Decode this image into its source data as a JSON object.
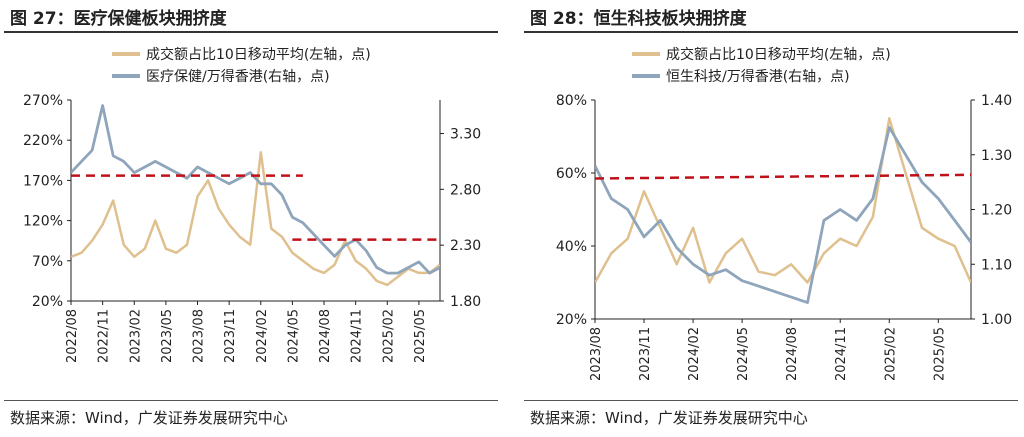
{
  "colors": {
    "turnover": "#DFC08E",
    "index": "#8FA5BB",
    "threshold": "#C0101A",
    "axis": "#222222"
  },
  "panels": [
    {
      "title": "图 27：医疗保健板块拥挤度",
      "source": "数据来源：Wind，广发证券发展研究中心",
      "legend": [
        "成交额占比10日移动平均(左轴，点)",
        "医疗保健/万得香港(右轴，点)"
      ]
    },
    {
      "title": "图 28：恒生科技板块拥挤度",
      "source": "数据来源：Wind，广发证券发展研究中心",
      "legend": [
        "成交额占比10日移动平均(左轴，点)",
        "恒生科技/万得香港(右轴，点)"
      ]
    }
  ],
  "chart_data": [
    {
      "type": "line",
      "legend_position": "top",
      "grid": false,
      "x_ticks": [
        "2022/08",
        "2022/11",
        "2023/02",
        "2023/05",
        "2023/08",
        "2023/11",
        "2024/02",
        "2024/05",
        "2024/08",
        "2024/11",
        "2025/02",
        "2025/05"
      ],
      "x_range": [
        "2022/08",
        "2025/07"
      ],
      "y_left": {
        "ticks": [
          "20%",
          "70%",
          "120%",
          "170%",
          "220%",
          "270%"
        ],
        "range": [
          20,
          270
        ]
      },
      "y_right": {
        "ticks": [
          "1.80",
          "2.30",
          "2.80",
          "3.30"
        ],
        "range": [
          1.8,
          3.6
        ]
      },
      "series": [
        {
          "name": "成交额占比10日移动平均(左轴，点)",
          "axis": "left",
          "style": "solid",
          "x": [
            "2022/08",
            "2022/09",
            "2022/10",
            "2022/11",
            "2022/12",
            "2023/01",
            "2023/02",
            "2023/03",
            "2023/04",
            "2023/05",
            "2023/06",
            "2023/07",
            "2023/08",
            "2023/09",
            "2023/10",
            "2023/11",
            "2023/12",
            "2024/01",
            "2024/02",
            "2024/03",
            "2024/04",
            "2024/05",
            "2024/06",
            "2024/07",
            "2024/08",
            "2024/09",
            "2024/10",
            "2024/11",
            "2024/12",
            "2025/01",
            "2025/02",
            "2025/03",
            "2025/04",
            "2025/05",
            "2025/06",
            "2025/07"
          ],
          "values": [
            75,
            80,
            95,
            115,
            145,
            90,
            75,
            85,
            120,
            85,
            80,
            90,
            150,
            170,
            135,
            115,
            100,
            90,
            205,
            110,
            100,
            80,
            70,
            60,
            55,
            65,
            95,
            70,
            60,
            45,
            40,
            50,
            60,
            55,
            55,
            65
          ]
        },
        {
          "name": "医疗保健/万得香港(右轴，点)",
          "axis": "right",
          "style": "solid",
          "x": [
            "2022/08",
            "2022/09",
            "2022/10",
            "2022/11",
            "2022/12",
            "2023/01",
            "2023/02",
            "2023/03",
            "2023/04",
            "2023/05",
            "2023/06",
            "2023/07",
            "2023/08",
            "2023/09",
            "2023/10",
            "2023/11",
            "2023/12",
            "2024/01",
            "2024/02",
            "2024/03",
            "2024/04",
            "2024/05",
            "2024/06",
            "2024/07",
            "2024/08",
            "2024/09",
            "2024/10",
            "2024/11",
            "2024/12",
            "2025/01",
            "2025/02",
            "2025/03",
            "2025/04",
            "2025/05",
            "2025/06",
            "2025/07"
          ],
          "values": [
            2.95,
            3.05,
            3.15,
            3.55,
            3.1,
            3.05,
            2.95,
            3.0,
            3.05,
            3.0,
            2.95,
            2.9,
            3.0,
            2.95,
            2.9,
            2.85,
            2.9,
            2.95,
            2.85,
            2.85,
            2.75,
            2.55,
            2.5,
            2.4,
            2.3,
            2.2,
            2.3,
            2.35,
            2.25,
            2.1,
            2.05,
            2.05,
            2.1,
            2.15,
            2.05,
            2.1
          ]
        },
        {
          "name": "",
          "axis": "left",
          "style": "dashed",
          "x": [
            "2022/08",
            "2024/06"
          ],
          "values": [
            176,
            176
          ]
        },
        {
          "name": "",
          "axis": "right",
          "style": "dashed",
          "x": [
            "2024/05",
            "2025/07"
          ],
          "values": [
            2.35,
            2.35
          ]
        }
      ]
    },
    {
      "type": "line",
      "legend_position": "top",
      "grid": false,
      "x_ticks": [
        "2023/08",
        "2023/11",
        "2024/02",
        "2024/05",
        "2024/08",
        "2024/11",
        "2025/02",
        "2025/05"
      ],
      "x_range": [
        "2023/08",
        "2025/07"
      ],
      "y_left": {
        "ticks": [
          "20%",
          "40%",
          "60%",
          "80%"
        ],
        "range": [
          20,
          80
        ]
      },
      "y_right": {
        "ticks": [
          "1.00",
          "1.10",
          "1.20",
          "1.30",
          "1.40"
        ],
        "range": [
          1.0,
          1.4
        ]
      },
      "series": [
        {
          "name": "成交额占比10日移动平均(左轴，点)",
          "axis": "left",
          "style": "solid",
          "x": [
            "2023/08",
            "2023/09",
            "2023/10",
            "2023/11",
            "2023/12",
            "2024/01",
            "2024/02",
            "2024/03",
            "2024/04",
            "2024/05",
            "2024/06",
            "2024/07",
            "2024/08",
            "2024/09",
            "2024/10",
            "2024/11",
            "2024/12",
            "2025/01",
            "2025/02",
            "2025/03",
            "2025/04",
            "2025/05",
            "2025/06",
            "2025/07"
          ],
          "values": [
            30,
            38,
            42,
            55,
            45,
            35,
            45,
            30,
            38,
            42,
            33,
            32,
            35,
            30,
            38,
            42,
            40,
            48,
            75,
            60,
            45,
            42,
            40,
            30
          ]
        },
        {
          "name": "恒生科技/万得香港(右轴，点)",
          "axis": "right",
          "style": "solid",
          "x": [
            "2023/08",
            "2023/09",
            "2023/10",
            "2023/11",
            "2023/12",
            "2024/01",
            "2024/02",
            "2024/03",
            "2024/04",
            "2024/05",
            "2024/06",
            "2024/07",
            "2024/08",
            "2024/09",
            "2024/10",
            "2024/11",
            "2024/12",
            "2025/01",
            "2025/02",
            "2025/03",
            "2025/04",
            "2025/05",
            "2025/06",
            "2025/07"
          ],
          "values": [
            1.28,
            1.22,
            1.2,
            1.15,
            1.18,
            1.13,
            1.1,
            1.08,
            1.09,
            1.07,
            1.06,
            1.05,
            1.04,
            1.03,
            1.18,
            1.2,
            1.18,
            1.22,
            1.35,
            1.3,
            1.25,
            1.22,
            1.18,
            1.14
          ]
        },
        {
          "name": "",
          "axis": "left",
          "style": "dashed",
          "x": [
            "2023/08",
            "2025/07"
          ],
          "values": [
            58.5,
            59.5
          ]
        }
      ]
    }
  ]
}
